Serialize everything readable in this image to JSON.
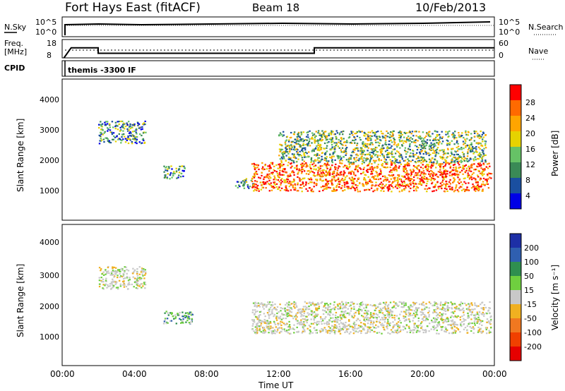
{
  "header": {
    "title": "Fort Hays East (fitACF)",
    "beam": "Beam 18",
    "date": "10/Feb/2013"
  },
  "params": {
    "nsky_label": "N.Sky",
    "nsky_ticks": [
      "10^5",
      "10^0"
    ],
    "nsearch_label": "N.Search",
    "nsearch_ticks": [
      "10^5",
      "10^0"
    ],
    "freq_label": "Freq.",
    "freq_unit": "[MHz]",
    "freq_ticks": [
      "18",
      "8"
    ],
    "nave_label": "Nave",
    "nave_ticks": [
      "60",
      "0"
    ],
    "cpid_label": "CPID",
    "cpid_value": "themis -3300 IF",
    "freq_steps": [
      {
        "from": 0.5,
        "to": 2.0,
        "mhz": 13.5
      },
      {
        "from": 2.0,
        "to": 14.0,
        "mhz": 10.5
      },
      {
        "from": 14.0,
        "to": 24.0,
        "mhz": 13.5
      }
    ]
  },
  "axes": {
    "xlabel": "Time UT",
    "xticks": [
      "00:00",
      "04:00",
      "08:00",
      "12:00",
      "16:00",
      "20:00",
      "00:00"
    ],
    "ylabel": "Slant Range [km]",
    "yticks": [
      "1000",
      "2000",
      "3000",
      "4000"
    ]
  },
  "colorbars": {
    "power": {
      "label": "Power [dB]",
      "ticks": [
        "28",
        "24",
        "20",
        "16",
        "12",
        "8",
        "4"
      ],
      "colors": [
        "#ff0000",
        "#ff6a00",
        "#ffa500",
        "#e6d200",
        "#66c266",
        "#3a8a56",
        "#1a4fa0",
        "#0000e6"
      ]
    },
    "velocity": {
      "label": "Velocity [m s⁻¹]",
      "ticks": [
        "200",
        "100",
        "50",
        "15",
        "-15",
        "-50",
        "-100",
        "-200"
      ],
      "colors": [
        "#1d2fa6",
        "#2f5fb0",
        "#2f8f4f",
        "#6fcf3f",
        "#c8c8c8",
        "#f0b020",
        "#f07820",
        "#f04000",
        "#e60000"
      ]
    }
  },
  "chart_data": {
    "type": "heatmap",
    "title": "Fort Hays East (fitACF)",
    "xlabel": "Time UT",
    "ylabel": "Slant Range [km]",
    "xlim": [
      "00:00",
      "24:00"
    ],
    "ylim": [
      180,
      4600
    ],
    "power_regions": [
      {
        "t0": 2.0,
        "t1": 4.6,
        "r0": 2600,
        "r1": 3300,
        "level": "low"
      },
      {
        "t0": 5.6,
        "t1": 6.8,
        "r0": 1500,
        "r1": 1900,
        "level": "low"
      },
      {
        "t0": 9.6,
        "t1": 10.6,
        "r0": 1200,
        "r1": 1500,
        "level": "low"
      },
      {
        "t0": 10.5,
        "t1": 23.8,
        "r0": 1100,
        "r1": 2000,
        "level": "high"
      },
      {
        "t0": 12.0,
        "t1": 23.5,
        "r0": 2000,
        "r1": 3000,
        "level": "medium"
      }
    ],
    "velocity_regions": [
      {
        "t0": 2.0,
        "t1": 4.6,
        "r0": 2600,
        "r1": 3300,
        "velocity_band": "-15..15"
      },
      {
        "t0": 5.6,
        "t1": 7.2,
        "r0": 1500,
        "r1": 1900,
        "velocity_band": "15..50"
      },
      {
        "t0": 10.5,
        "t1": 23.8,
        "r0": 1200,
        "r1": 2200,
        "velocity_band": "-15..15"
      }
    ]
  }
}
